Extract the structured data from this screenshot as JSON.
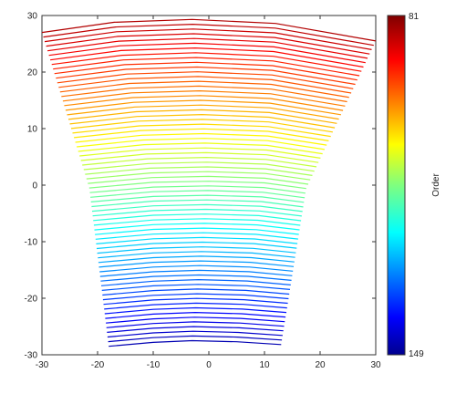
{
  "chart_data": {
    "type": "line",
    "title": "",
    "xlabel": "",
    "ylabel": "",
    "xlim": [
      -30,
      30
    ],
    "ylim": [
      -30,
      30
    ],
    "x_ticks": [
      -30,
      -20,
      -10,
      0,
      10,
      20,
      30
    ],
    "y_ticks": [
      -30,
      -20,
      -10,
      0,
      10,
      20,
      30
    ],
    "grid": false,
    "colormap": "jet",
    "colorbar": {
      "label": "Order",
      "min_label": "149",
      "max_label": "81",
      "min_order": 81,
      "max_order": 149,
      "placement": "right"
    },
    "series_description": "Echelle orders 81 (top, red) to 149 (bottom, dark blue); each order is a slightly arched trace",
    "top_order": {
      "order": 81,
      "x": [
        -30,
        -17,
        -3,
        12,
        30
      ],
      "y": [
        27,
        28.8,
        29.3,
        28.6,
        25.5
      ]
    },
    "middle_order": {
      "order": 115,
      "x": [
        -21.5,
        -10,
        0,
        10,
        17.5
      ],
      "y": [
        -0.5,
        0.5,
        0.7,
        0.4,
        -0.6
      ]
    },
    "bottom_order": {
      "order": 149,
      "x": [
        -18,
        -10,
        -3,
        5,
        13
      ],
      "y": [
        -28.5,
        -27.8,
        -27.5,
        -27.7,
        -28.2
      ]
    },
    "orders": [
      81,
      149
    ]
  }
}
